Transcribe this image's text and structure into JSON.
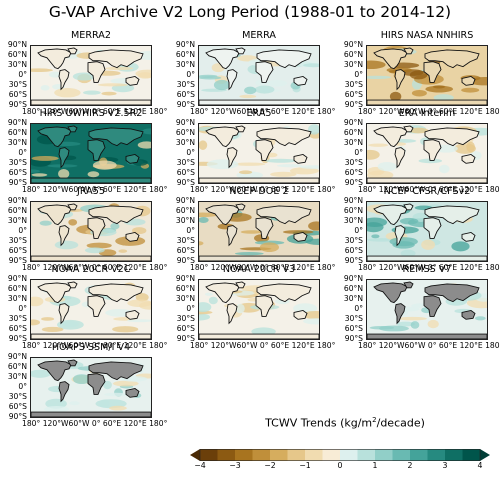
{
  "figure_title": "G-VAP Archive V2 Long Period (1988-01 to 2014-12)",
  "lat_labels": [
    "90°N",
    "60°N",
    "30°N",
    "0°",
    "30°S",
    "60°S",
    "90°S"
  ],
  "lon_labels": "180° 120°W60°W  0°   60°E 120°E 180°",
  "panels": [
    {
      "name": "MERRA2",
      "style": "weak-mixed"
    },
    {
      "name": "MERRA",
      "style": "moist-blue"
    },
    {
      "name": "HIRS NASA NNHIRS",
      "style": "strong-dry"
    },
    {
      "name": "HIRS UWHIRS V2.5R2",
      "style": "strong-moist"
    },
    {
      "name": "ERA5",
      "style": "weak-mixed"
    },
    {
      "name": "ERA Interim",
      "style": "weak-mixed"
    },
    {
      "name": "JRA55",
      "style": "mixed"
    },
    {
      "name": "NCEP-DOE 2",
      "style": "mixed-strong"
    },
    {
      "name": "NCEP CFSR/CFSv2",
      "style": "moist-teal"
    },
    {
      "name": "NOAA 20CR V2C",
      "style": "weak-mixed"
    },
    {
      "name": "NOAA 20CR V3",
      "style": "weak-mixed"
    },
    {
      "name": "REMSS V7",
      "style": "ocean-only"
    },
    {
      "name": "HOAPS SSM/I V4",
      "style": "ocean-only"
    }
  ],
  "colorbar": {
    "title_prefix": "TCWV Trends (kg/m",
    "title_sup": "2",
    "title_suffix": "/decade)",
    "min": -4,
    "max": 4,
    "step": 0.5,
    "tick_labels": [
      "−4",
      "−3",
      "−2",
      "−1",
      "0",
      "1",
      "2",
      "3",
      "4"
    ],
    "colors": [
      "#6b3f0a",
      "#8c5a12",
      "#a8741f",
      "#c08f3a",
      "#d6ad5e",
      "#e6c78a",
      "#f1dcb0",
      "#f8ecd6",
      "#ddf0ee",
      "#b8e1dc",
      "#91cfc8",
      "#69bab2",
      "#44a39a",
      "#268a80",
      "#0f6f64",
      "#00554b"
    ]
  }
}
